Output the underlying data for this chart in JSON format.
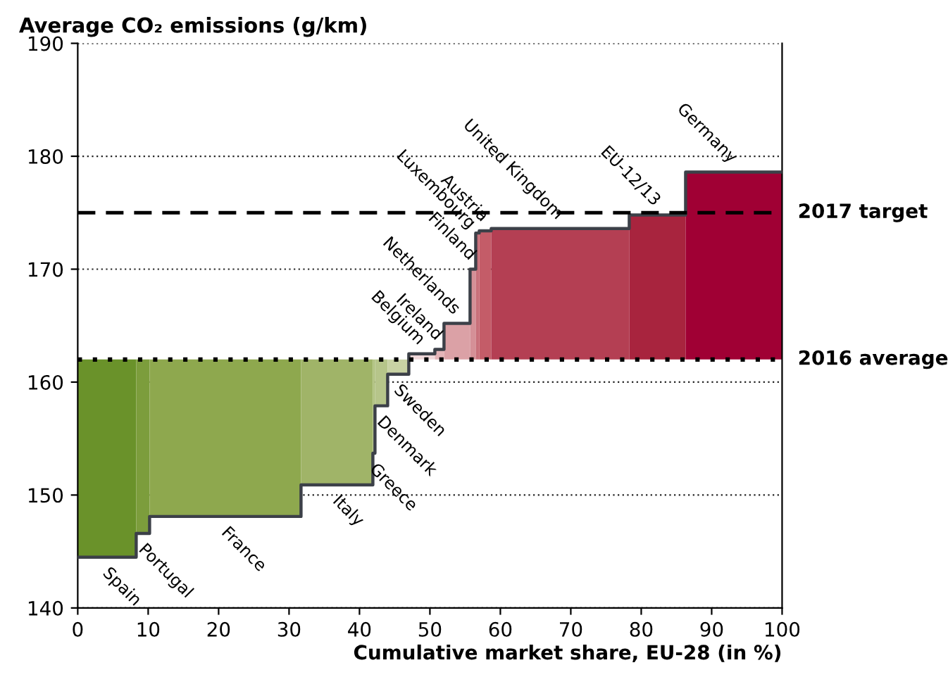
{
  "chart_data": {
    "type": "bar",
    "ylabel": "Average CO₂ emissions (g/km)",
    "xlabel": "Cumulative market share, EU-28 (in %)",
    "x": [
      4.15,
      9.25,
      20.95,
      36.8,
      42.05,
      43.1,
      45.5,
      48.85,
      51.35,
      53.85,
      56.1,
      56.75,
      57.85,
      68.5,
      82.3,
      93.15
    ],
    "values": [
      -17.5,
      -15.4,
      -13.9,
      -11.1,
      -8.3,
      -4.1,
      -1.3,
      0.5,
      0.9,
      3.2,
      8.0,
      11.2,
      11.4,
      11.6,
      12.8,
      16.6
    ],
    "base": [
      162,
      162,
      162,
      162,
      162,
      162,
      162,
      162,
      162,
      162,
      162,
      162,
      162,
      162,
      162,
      162
    ],
    "colors": [
      "#6a922a",
      "#7c9d3c",
      "#8ea84e",
      "#a0b468",
      "#afc07e",
      "#b6c58a",
      "#c8d2a4",
      "#f0d8da",
      "#e4b4b8",
      "#dba1a6",
      "#d59097",
      "#c8707a",
      "#c45c68",
      "#b43f53",
      "#a8243e",
      "#a00034"
    ],
    "annotations": [
      {
        "text": "Spain",
        "x": 4.15,
        "y": 144.5
      },
      {
        "text": "Portugal",
        "x": 9.25,
        "y": 146.6
      },
      {
        "text": "France",
        "x": 21,
        "y": 148.1
      },
      {
        "text": "Italy",
        "x": 36.8,
        "y": 150.9
      },
      {
        "text": "Greece",
        "x": 42.05,
        "y": 153.7
      },
      {
        "text": "Denmark",
        "x": 43.1,
        "y": 157.9
      },
      {
        "text": "Sweden",
        "x": 45.5,
        "y": 160.7
      },
      {
        "text": "Belgium",
        "x": 48.85,
        "y": 162.5
      },
      {
        "text": "Ireland",
        "x": 51.35,
        "y": 162.9
      },
      {
        "text": "Netherlands",
        "x": 53.85,
        "y": 165.2
      },
      {
        "text": "Finland",
        "x": 56.1,
        "y": 170.0
      },
      {
        "text": "Luxembourg",
        "x": 56.75,
        "y": 173.2
      },
      {
        "text": "Austria",
        "x": 57.85,
        "y": 173.4
      },
      {
        "text": "United Kingdom",
        "x": 68.5,
        "y": 173.6
      },
      {
        "text": "EU-12/13",
        "x": 82.3,
        "y": 174.8
      },
      {
        "text": "Germany",
        "x": 93.15,
        "y": 178.6
      }
    ],
    "ref_lines": [
      {
        "axis": "y",
        "value": 175,
        "label": "2017 target",
        "line_style": "dashed",
        "color": "#000000"
      },
      {
        "axis": "y",
        "value": 162,
        "label": "2016 average",
        "line_style": "dotted",
        "color": "#000000"
      }
    ],
    "xlim": [
      0,
      100
    ],
    "ylim": [
      140,
      190
    ],
    "xticks": [
      0,
      10,
      20,
      30,
      40,
      50,
      60,
      70,
      80,
      90,
      100
    ],
    "yticks": [
      140,
      150,
      160,
      170,
      180,
      190
    ],
    "grid": "y"
  }
}
